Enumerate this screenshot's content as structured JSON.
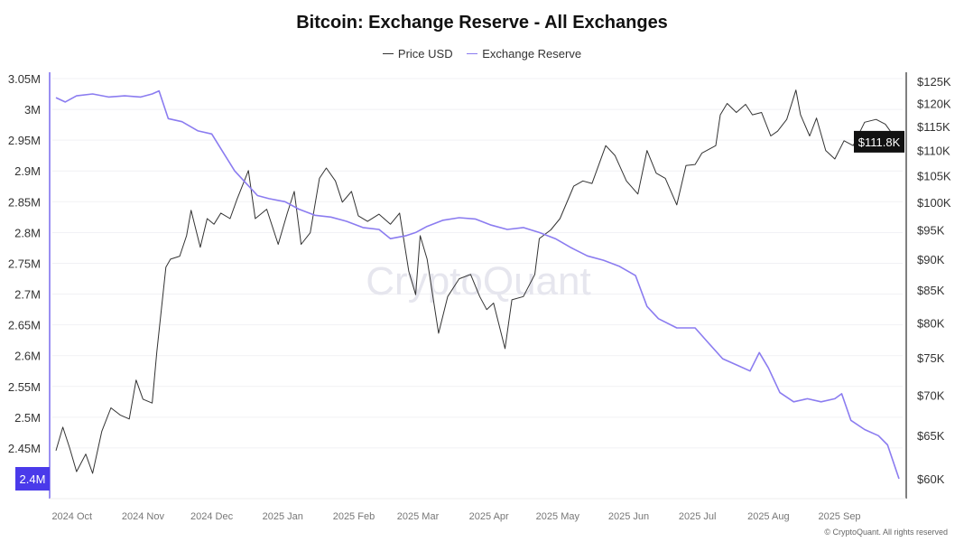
{
  "chart_data": {
    "type": "line",
    "title": "Bitcoin: Exchange Reserve - All Exchanges",
    "legend": [
      "Price USD",
      "Exchange Reserve"
    ],
    "legend_position": "top",
    "watermark": "CryptoQuant",
    "copyright": "© CryptoQuant. All rights reserved",
    "x_ticks": [
      {
        "date": "2024-10-01",
        "label": "2024 Oct"
      },
      {
        "date": "2024-11-01",
        "label": "2024 Nov"
      },
      {
        "date": "2024-12-01",
        "label": "2024 Dec"
      },
      {
        "date": "2025-01-01",
        "label": "2025 Jan"
      },
      {
        "date": "2025-02-01",
        "label": "2025 Feb"
      },
      {
        "date": "2025-03-01",
        "label": "2025 Mar"
      },
      {
        "date": "2025-04-01",
        "label": "2025 Apr"
      },
      {
        "date": "2025-05-01",
        "label": "2025 May"
      },
      {
        "date": "2025-06-01",
        "label": "2025 Jun"
      },
      {
        "date": "2025-07-01",
        "label": "2025 Jul"
      },
      {
        "date": "2025-08-01",
        "label": "2025 Aug"
      },
      {
        "date": "2025-09-01",
        "label": "2025 Sep"
      }
    ],
    "x_range": [
      "2024-09-24",
      "2025-09-27"
    ],
    "left_axis": {
      "unit": "M",
      "range": [
        2.4,
        3.05
      ],
      "ticks": [
        "3.05M",
        "3M",
        "2.95M",
        "2.9M",
        "2.85M",
        "2.8M",
        "2.75M",
        "2.7M",
        "2.65M",
        "2.6M",
        "2.55M",
        "2.5M",
        "2.45M"
      ],
      "tick_values": [
        3.05,
        3.0,
        2.95,
        2.9,
        2.85,
        2.8,
        2.75,
        2.7,
        2.65,
        2.6,
        2.55,
        2.5,
        2.45
      ],
      "current_label": "2.4M"
    },
    "right_axis": {
      "scale": "log",
      "unit": "K USD",
      "range": [
        60,
        125
      ],
      "ticks": [
        "$125K",
        "$120K",
        "$115K",
        "$110K",
        "$105K",
        "$100K",
        "$95K",
        "$90K",
        "$85K",
        "$80K",
        "$75K",
        "$70K",
        "$65K",
        "$60K"
      ],
      "tick_values": [
        125,
        120,
        115,
        110,
        105,
        100,
        95,
        90,
        85,
        80,
        75,
        70,
        65,
        60
      ],
      "current_label": "$111.8K"
    },
    "grid": true,
    "colors": {
      "price": "#333333",
      "reserve": "#8b7cf0",
      "reserve_badge": "#4a3aea",
      "price_badge": "#111111"
    },
    "series": [
      {
        "name": "Price USD",
        "axis": "right",
        "points": [
          [
            "2024-09-24",
            63.2
          ],
          [
            "2024-09-27",
            66
          ],
          [
            "2024-09-30",
            63.5
          ],
          [
            "2024-10-03",
            60.8
          ],
          [
            "2024-10-07",
            62.8
          ],
          [
            "2024-10-10",
            60.6
          ],
          [
            "2024-10-14",
            65.5
          ],
          [
            "2024-10-18",
            68.4
          ],
          [
            "2024-10-22",
            67.5
          ],
          [
            "2024-10-26",
            67
          ],
          [
            "2024-10-29",
            72
          ],
          [
            "2024-11-01",
            69.5
          ],
          [
            "2024-11-05",
            69
          ],
          [
            "2024-11-07",
            75.8
          ],
          [
            "2024-11-11",
            88.7
          ],
          [
            "2024-11-13",
            90
          ],
          [
            "2024-11-17",
            90.5
          ],
          [
            "2024-11-20",
            94
          ],
          [
            "2024-11-22",
            98.5
          ],
          [
            "2024-11-26",
            92
          ],
          [
            "2024-11-29",
            97
          ],
          [
            "2024-12-02",
            96
          ],
          [
            "2024-12-05",
            98
          ],
          [
            "2024-12-09",
            97
          ],
          [
            "2024-12-12",
            100.5
          ],
          [
            "2024-12-17",
            106
          ],
          [
            "2024-12-20",
            97
          ],
          [
            "2024-12-25",
            98.7
          ],
          [
            "2024-12-30",
            92.5
          ],
          [
            "2025-01-03",
            98
          ],
          [
            "2025-01-06",
            102
          ],
          [
            "2025-01-09",
            92.5
          ],
          [
            "2025-01-13",
            94.5
          ],
          [
            "2025-01-17",
            104.5
          ],
          [
            "2025-01-20",
            106.5
          ],
          [
            "2025-01-24",
            104
          ],
          [
            "2025-01-27",
            100
          ],
          [
            "2025-01-31",
            102
          ],
          [
            "2025-02-03",
            97.5
          ],
          [
            "2025-02-07",
            96.5
          ],
          [
            "2025-02-12",
            97.8
          ],
          [
            "2025-02-17",
            96
          ],
          [
            "2025-02-21",
            98
          ],
          [
            "2025-02-25",
            88
          ],
          [
            "2025-02-28",
            84.3
          ],
          [
            "2025-03-02",
            94
          ],
          [
            "2025-03-05",
            90
          ],
          [
            "2025-03-10",
            78.5
          ],
          [
            "2025-03-14",
            84
          ],
          [
            "2025-03-19",
            86.8
          ],
          [
            "2025-03-24",
            87.5
          ],
          [
            "2025-03-28",
            84
          ],
          [
            "2025-03-31",
            82
          ],
          [
            "2025-04-03",
            83
          ],
          [
            "2025-04-08",
            76.3
          ],
          [
            "2025-04-11",
            83.5
          ],
          [
            "2025-04-16",
            84
          ],
          [
            "2025-04-21",
            87.5
          ],
          [
            "2025-04-23",
            93.5
          ],
          [
            "2025-04-28",
            95
          ],
          [
            "2025-05-02",
            97
          ],
          [
            "2025-05-08",
            103
          ],
          [
            "2025-05-12",
            104
          ],
          [
            "2025-05-16",
            103.5
          ],
          [
            "2025-05-22",
            111
          ],
          [
            "2025-05-26",
            109
          ],
          [
            "2025-05-31",
            104
          ],
          [
            "2025-06-05",
            101.5
          ],
          [
            "2025-06-09",
            110
          ],
          [
            "2025-06-13",
            105.5
          ],
          [
            "2025-06-17",
            104.5
          ],
          [
            "2025-06-22",
            99.5
          ],
          [
            "2025-06-26",
            107
          ],
          [
            "2025-06-30",
            107.2
          ],
          [
            "2025-07-03",
            109.5
          ],
          [
            "2025-07-09",
            111
          ],
          [
            "2025-07-11",
            117.5
          ],
          [
            "2025-07-14",
            120
          ],
          [
            "2025-07-18",
            118
          ],
          [
            "2025-07-22",
            119.8
          ],
          [
            "2025-07-25",
            117.5
          ],
          [
            "2025-07-29",
            118
          ],
          [
            "2025-08-02",
            113
          ],
          [
            "2025-08-05",
            114
          ],
          [
            "2025-08-09",
            116.5
          ],
          [
            "2025-08-13",
            123
          ],
          [
            "2025-08-15",
            117.5
          ],
          [
            "2025-08-19",
            113
          ],
          [
            "2025-08-22",
            116.8
          ],
          [
            "2025-08-26",
            110
          ],
          [
            "2025-08-30",
            108.3
          ],
          [
            "2025-09-03",
            112
          ],
          [
            "2025-09-07",
            111
          ],
          [
            "2025-09-12",
            115.9
          ],
          [
            "2025-09-17",
            116.5
          ],
          [
            "2025-09-21",
            115.5
          ],
          [
            "2025-09-24",
            113.5
          ],
          [
            "2025-09-27",
            111.8
          ]
        ]
      },
      {
        "name": "Exchange Reserve",
        "axis": "left",
        "points": [
          [
            "2024-09-24",
            3.019
          ],
          [
            "2024-09-28",
            3.012
          ],
          [
            "2024-10-03",
            3.022
          ],
          [
            "2024-10-10",
            3.025
          ],
          [
            "2024-10-17",
            3.02
          ],
          [
            "2024-10-24",
            3.022
          ],
          [
            "2024-10-31",
            3.02
          ],
          [
            "2024-11-05",
            3.025
          ],
          [
            "2024-11-08",
            3.03
          ],
          [
            "2024-11-12",
            2.985
          ],
          [
            "2024-11-18",
            2.98
          ],
          [
            "2024-11-25",
            2.965
          ],
          [
            "2024-12-01",
            2.96
          ],
          [
            "2024-12-06",
            2.93
          ],
          [
            "2024-12-11",
            2.9
          ],
          [
            "2024-12-16",
            2.88
          ],
          [
            "2024-12-21",
            2.86
          ],
          [
            "2024-12-26",
            2.855
          ],
          [
            "2025-01-02",
            2.85
          ],
          [
            "2025-01-08",
            2.838
          ],
          [
            "2025-01-15",
            2.828
          ],
          [
            "2025-01-22",
            2.825
          ],
          [
            "2025-01-29",
            2.818
          ],
          [
            "2025-02-05",
            2.808
          ],
          [
            "2025-02-12",
            2.805
          ],
          [
            "2025-02-17",
            2.79
          ],
          [
            "2025-02-24",
            2.795
          ],
          [
            "2025-02-28",
            2.8
          ],
          [
            "2025-03-05",
            2.81
          ],
          [
            "2025-03-12",
            2.82
          ],
          [
            "2025-03-19",
            2.824
          ],
          [
            "2025-03-26",
            2.822
          ],
          [
            "2025-04-02",
            2.812
          ],
          [
            "2025-04-09",
            2.805
          ],
          [
            "2025-04-16",
            2.808
          ],
          [
            "2025-04-23",
            2.8
          ],
          [
            "2025-04-30",
            2.79
          ],
          [
            "2025-05-07",
            2.775
          ],
          [
            "2025-05-14",
            2.762
          ],
          [
            "2025-05-21",
            2.755
          ],
          [
            "2025-05-28",
            2.745
          ],
          [
            "2025-06-04",
            2.73
          ],
          [
            "2025-06-09",
            2.68
          ],
          [
            "2025-06-14",
            2.66
          ],
          [
            "2025-06-22",
            2.645
          ],
          [
            "2025-06-30",
            2.645
          ],
          [
            "2025-07-06",
            2.62
          ],
          [
            "2025-07-12",
            2.595
          ],
          [
            "2025-07-18",
            2.585
          ],
          [
            "2025-07-24",
            2.575
          ],
          [
            "2025-07-28",
            2.605
          ],
          [
            "2025-08-01",
            2.58
          ],
          [
            "2025-08-06",
            2.54
          ],
          [
            "2025-08-12",
            2.525
          ],
          [
            "2025-08-18",
            2.53
          ],
          [
            "2025-08-24",
            2.525
          ],
          [
            "2025-08-30",
            2.53
          ],
          [
            "2025-09-02",
            2.538
          ],
          [
            "2025-09-06",
            2.495
          ],
          [
            "2025-09-12",
            2.48
          ],
          [
            "2025-09-18",
            2.47
          ],
          [
            "2025-09-22",
            2.455
          ],
          [
            "2025-09-27",
            2.4
          ]
        ]
      }
    ]
  }
}
